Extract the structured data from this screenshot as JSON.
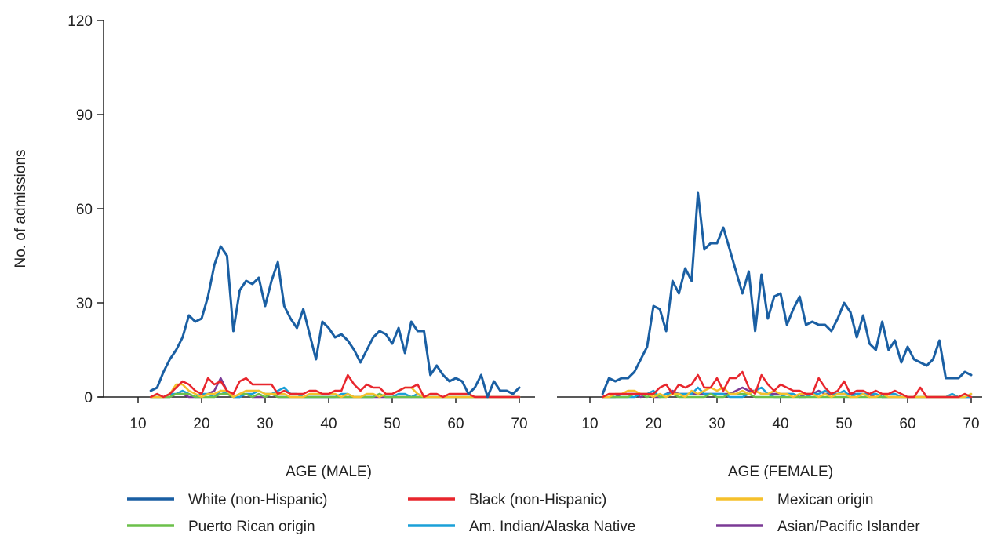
{
  "chart_data": {
    "type": "line",
    "ylabel": "No. of admissions",
    "ylim": [
      0,
      120
    ],
    "yticks": [
      0,
      30,
      60,
      90,
      120
    ],
    "xticks": [
      10,
      20,
      30,
      40,
      50,
      60,
      70
    ],
    "xlim": [
      5,
      71
    ],
    "grid": false,
    "legend_position": "bottom",
    "series_styles": [
      {
        "name": "White (non-Hispanic)",
        "color": "#1a5fa3"
      },
      {
        "name": "Black (non-Hispanic)",
        "color": "#e8262d"
      },
      {
        "name": "Mexican origin",
        "color": "#f5c02b"
      },
      {
        "name": "Puerto Rican origin",
        "color": "#6cc04a"
      },
      {
        "name": "Am. Indian/Alaska Native",
        "color": "#1aa0d8"
      },
      {
        "name": "Asian/Pacific Islander",
        "color": "#7b3a96"
      }
    ],
    "panels": [
      {
        "xlabel": "AGE (MALE)",
        "x": [
          12,
          13,
          14,
          15,
          16,
          17,
          18,
          19,
          20,
          21,
          22,
          23,
          24,
          25,
          26,
          27,
          28,
          29,
          30,
          31,
          32,
          33,
          34,
          35,
          36,
          37,
          38,
          39,
          40,
          41,
          42,
          43,
          44,
          45,
          46,
          47,
          48,
          49,
          50,
          51,
          52,
          53,
          54,
          55,
          56,
          57,
          58,
          59,
          60,
          61,
          62,
          63,
          64,
          65,
          66,
          67,
          68,
          69,
          70
        ],
        "series": [
          {
            "name": "White (non-Hispanic)",
            "values": [
              2,
              3,
              8,
              12,
              15,
              19,
              26,
              24,
              25,
              32,
              42,
              48,
              45,
              21,
              34,
              37,
              36,
              38,
              29,
              37,
              43,
              29,
              25,
              22,
              28,
              20,
              12,
              24,
              22,
              19,
              20,
              18,
              15,
              11,
              15,
              19,
              21,
              20,
              17,
              22,
              14,
              24,
              21,
              21,
              7,
              10,
              7,
              5,
              6,
              5,
              1,
              3,
              7,
              0,
              5,
              2,
              2,
              1,
              3
            ]
          },
          {
            "name": "Black (non-Hispanic)",
            "values": [
              0,
              1,
              0,
              1,
              3,
              5,
              4,
              2,
              1,
              6,
              4,
              5,
              2,
              1,
              5,
              6,
              4,
              4,
              4,
              4,
              1,
              2,
              1,
              1,
              1,
              2,
              2,
              1,
              1,
              2,
              2,
              7,
              4,
              2,
              4,
              3,
              3,
              1,
              1,
              2,
              3,
              3,
              4,
              0,
              1,
              1,
              0,
              1,
              1,
              1,
              1,
              0,
              0,
              0,
              0,
              0,
              0,
              0,
              0
            ]
          },
          {
            "name": "Mexican origin",
            "values": [
              0,
              0,
              0,
              1,
              4,
              4,
              2,
              1,
              0,
              1,
              1,
              2,
              2,
              0,
              1,
              2,
              2,
              2,
              1,
              1,
              1,
              1,
              0,
              0,
              0,
              1,
              1,
              1,
              1,
              1,
              0,
              1,
              0,
              0,
              1,
              1,
              0,
              1,
              1,
              2,
              3,
              3,
              1,
              0,
              0,
              0,
              0,
              0,
              0,
              0,
              0,
              0,
              0,
              0,
              0,
              0,
              0,
              0,
              0
            ]
          },
          {
            "name": "Puerto Rican origin",
            "values": [
              0,
              0,
              0,
              0,
              1,
              1,
              1,
              0,
              0,
              0,
              0,
              1,
              1,
              0,
              1,
              1,
              0,
              1,
              0,
              1,
              0,
              0,
              0,
              0,
              0,
              0,
              0,
              0,
              0,
              0,
              0,
              0,
              0,
              0,
              0,
              0,
              1,
              0,
              0,
              0,
              0,
              0,
              0,
              0,
              0,
              0,
              0,
              0,
              0,
              0,
              0,
              0,
              0,
              0,
              0,
              0,
              0,
              0,
              0
            ]
          },
          {
            "name": "Am. Indian/Alaska Native",
            "values": [
              0,
              0,
              0,
              1,
              1,
              2,
              1,
              0,
              1,
              1,
              0,
              2,
              1,
              0,
              0,
              1,
              1,
              2,
              1,
              1,
              2,
              3,
              1,
              1,
              0,
              0,
              0,
              0,
              0,
              0,
              1,
              1,
              0,
              0,
              0,
              0,
              1,
              0,
              0,
              1,
              1,
              0,
              1,
              0,
              0,
              0,
              0,
              0,
              0,
              0,
              0,
              0,
              0,
              0,
              0,
              0,
              0,
              0,
              0
            ]
          },
          {
            "name": "Asian/Pacific Islander",
            "values": [
              0,
              0,
              0,
              0,
              1,
              1,
              0,
              0,
              0,
              1,
              2,
              6,
              2,
              0,
              0,
              1,
              0,
              0,
              0,
              1,
              0,
              0,
              0,
              0,
              0,
              0,
              0,
              0,
              0,
              0,
              0,
              0,
              0,
              0,
              0,
              0,
              0,
              0,
              0,
              0,
              0,
              0,
              0,
              0,
              0,
              0,
              0,
              0,
              0,
              0,
              0,
              0,
              0,
              0,
              0,
              0,
              0,
              0,
              0
            ]
          }
        ]
      },
      {
        "xlabel": "AGE (FEMALE)",
        "x": [
          12,
          13,
          14,
          15,
          16,
          17,
          18,
          19,
          20,
          21,
          22,
          23,
          24,
          25,
          26,
          27,
          28,
          29,
          30,
          31,
          32,
          33,
          34,
          35,
          36,
          37,
          38,
          39,
          40,
          41,
          42,
          43,
          44,
          45,
          46,
          47,
          48,
          49,
          50,
          51,
          52,
          53,
          54,
          55,
          56,
          57,
          58,
          59,
          60,
          61,
          62,
          63,
          64,
          65,
          66,
          67,
          68,
          69,
          70
        ],
        "series": [
          {
            "name": "White (non-Hispanic)",
            "values": [
              1,
              6,
              5,
              6,
              6,
              8,
              12,
              16,
              29,
              28,
              21,
              37,
              33,
              41,
              37,
              65,
              47,
              49,
              49,
              54,
              47,
              40,
              33,
              40,
              21,
              39,
              25,
              32,
              33,
              23,
              28,
              32,
              23,
              24,
              23,
              23,
              21,
              25,
              30,
              27,
              19,
              26,
              17,
              15,
              24,
              15,
              18,
              11,
              16,
              12,
              11,
              10,
              12,
              18,
              6,
              6,
              6,
              8,
              7
            ]
          },
          {
            "name": "Black (non-Hispanic)",
            "values": [
              0,
              1,
              1,
              1,
              1,
              1,
              1,
              1,
              1,
              3,
              4,
              1,
              4,
              3,
              4,
              7,
              3,
              3,
              6,
              2,
              6,
              6,
              8,
              3,
              1,
              7,
              4,
              2,
              4,
              3,
              2,
              2,
              1,
              1,
              6,
              3,
              1,
              2,
              5,
              1,
              2,
              2,
              1,
              2,
              1,
              1,
              2,
              1,
              0,
              0,
              3,
              0,
              0,
              0,
              0,
              0,
              0,
              1,
              0
            ]
          },
          {
            "name": "Mexican origin",
            "values": [
              0,
              0,
              1,
              1,
              2,
              2,
              1,
              1,
              0,
              1,
              0,
              1,
              1,
              0,
              2,
              1,
              2,
              3,
              2,
              3,
              1,
              1,
              2,
              1,
              2,
              1,
              1,
              2,
              1,
              1,
              0,
              1,
              1,
              1,
              0,
              1,
              0,
              1,
              1,
              0,
              0,
              1,
              0,
              0,
              1,
              0,
              0,
              0,
              0,
              0,
              0,
              0,
              0,
              0,
              0,
              0,
              0,
              0,
              1
            ]
          },
          {
            "name": "Puerto Rican origin",
            "values": [
              0,
              0,
              0,
              0,
              0,
              1,
              1,
              0,
              1,
              0,
              0,
              1,
              0,
              0,
              0,
              0,
              0,
              1,
              0,
              0,
              1,
              1,
              1,
              1,
              0,
              0,
              0,
              0,
              0,
              0,
              0,
              0,
              0,
              0,
              0,
              0,
              0,
              0,
              0,
              0,
              0,
              0,
              0,
              0,
              0,
              0,
              0,
              0,
              0,
              0,
              0,
              0,
              0,
              0,
              0,
              0,
              0,
              0,
              1
            ]
          },
          {
            "name": "Am. Indian/Alaska Native",
            "values": [
              0,
              0,
              0,
              0,
              0,
              0,
              1,
              1,
              2,
              0,
              1,
              1,
              1,
              1,
              1,
              3,
              1,
              1,
              1,
              1,
              0,
              0,
              0,
              1,
              2,
              3,
              1,
              0,
              0,
              1,
              1,
              0,
              0,
              1,
              1,
              2,
              1,
              1,
              2,
              0,
              1,
              1,
              1,
              1,
              0,
              1,
              1,
              0,
              0,
              0,
              0,
              0,
              0,
              0,
              0,
              1,
              0,
              0,
              0
            ]
          },
          {
            "name": "Asian/Pacific Islander",
            "values": [
              0,
              0,
              0,
              1,
              1,
              1,
              0,
              1,
              0,
              0,
              1,
              2,
              1,
              1,
              1,
              1,
              1,
              1,
              1,
              1,
              1,
              2,
              3,
              2,
              2,
              1,
              1,
              1,
              1,
              1,
              1,
              0,
              1,
              1,
              2,
              1,
              1,
              1,
              1,
              1,
              1,
              1,
              0,
              1,
              0,
              0,
              0,
              0,
              0,
              0,
              0,
              0,
              0,
              0,
              0,
              0,
              0,
              0,
              0
            ]
          }
        ]
      }
    ]
  }
}
